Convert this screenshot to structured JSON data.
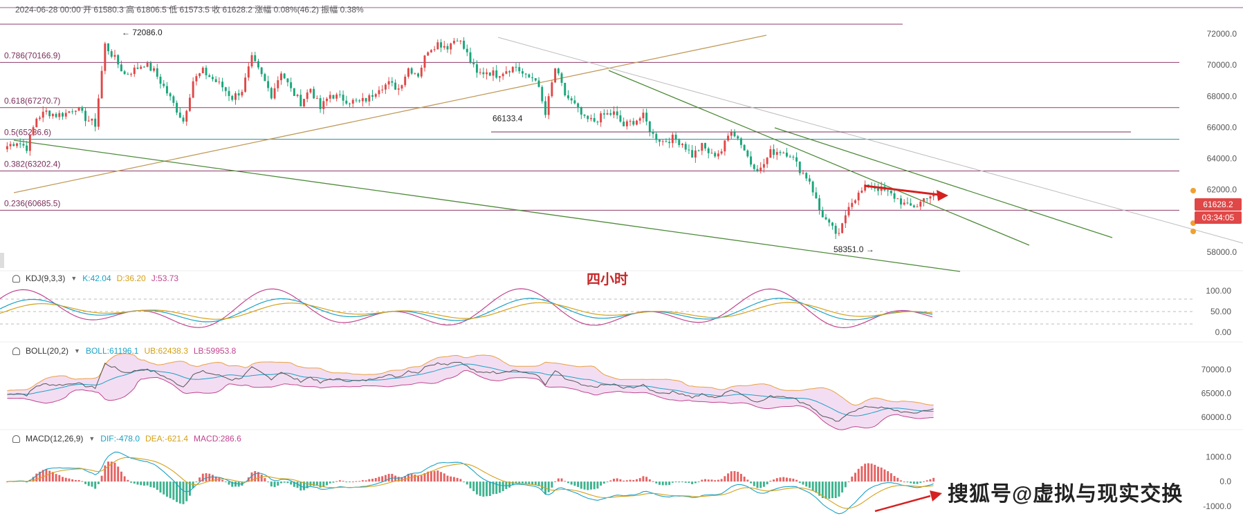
{
  "header": {
    "info_line": "2024-06-28 00:00  开 61580.3  高 61806.5  低 61573.5  收 61628.2  涨幅 0.08%(46.2)  振幅 0.38%"
  },
  "timeframe_label": "四小时",
  "watermark": "搜狐号@虚拟与现实交换",
  "price_tag": {
    "price": "61628.2",
    "countdown": "03:34:05"
  },
  "indicators": {
    "kdj": {
      "name": "KDJ(9,3,3)",
      "k": "K:42.04",
      "d": "D:36.20",
      "j": "J:53.73"
    },
    "boll": {
      "name": "BOLL(20,2)",
      "mid": "BOLL:61196.1",
      "ub": "UB:62438.3",
      "lb": "LB:59953.8"
    },
    "macd": {
      "name": "MACD(12,26,9)",
      "dif": "DIF:-478.0",
      "dea": "DEA:-621.4",
      "macd": "MACD:286.6"
    }
  },
  "colors": {
    "up": "#e04747",
    "down": "#1aa57a",
    "fib": "#8e3a6a",
    "accent": "#c62828"
  },
  "chart_data": {
    "type": "candlestick",
    "main": {
      "ylim": [
        56800,
        73200
      ],
      "yticks": [
        "72000.0",
        "70000.0",
        "68000.0",
        "66000.0",
        "64000.0",
        "62000.0",
        "60000.0",
        "58000.0"
      ],
      "ytick_values": [
        72000,
        70000,
        68000,
        66000,
        64000,
        62000,
        60000,
        58000
      ],
      "close_path": [
        64800,
        65100,
        64700,
        66600,
        67000,
        66800,
        66900,
        67300,
        66600,
        66200,
        71300,
        70400,
        69400,
        69700,
        70100,
        69600,
        68600,
        67500,
        66400,
        69000,
        69600,
        69100,
        68600,
        67900,
        68400,
        70400,
        69300,
        68100,
        69600,
        68400,
        67600,
        68500,
        67200,
        68100,
        67900,
        67700,
        67600,
        67900,
        68600,
        68800,
        68500,
        69800,
        69400,
        71000,
        71400,
        71200,
        71800,
        70700,
        69400,
        69600,
        69400,
        69700,
        69900,
        69200,
        69200,
        66800,
        69800,
        68100,
        67400,
        66500,
        66400,
        66800,
        66900,
        66100,
        66400,
        66700,
        65500,
        65100,
        65300,
        65000,
        64200,
        64800,
        64200,
        64500,
        65900,
        65000,
        63700,
        63300,
        64400,
        64500,
        64300,
        63300,
        62600,
        60700,
        59700,
        59000,
        61100,
        61700,
        62300,
        62100,
        61800,
        61400,
        60900,
        61000,
        61628
      ],
      "fib_levels": [
        {
          "label": "0.786(70166.9)",
          "value": 70166.9
        },
        {
          "label": "0.618(67270.7)",
          "value": 67270.7
        },
        {
          "label": "0.5(65236.6)",
          "value": 65236.6
        },
        {
          "label": "0.382(63202.4)",
          "value": 63202.4
        },
        {
          "label": "0.236(60685.5)",
          "value": 60685.5
        }
      ],
      "annotations": [
        {
          "label": "72086.0",
          "value": 72086.0
        },
        {
          "label": "66133.4",
          "value": 66133.4
        },
        {
          "label": "58351.0",
          "value": 58351.0
        }
      ]
    },
    "kdj": {
      "yticks": [
        "100.00",
        "50.00",
        "0.00"
      ],
      "ytick_values": [
        100,
        50,
        0
      ],
      "ylim": [
        -15,
        115
      ]
    },
    "boll": {
      "yticks": [
        "70000.0",
        "65000.0",
        "60000.0"
      ],
      "ytick_values": [
        70000,
        65000,
        60000
      ],
      "ylim": [
        58000,
        72500
      ]
    },
    "macd": {
      "yticks": [
        "1000.0",
        "0.0",
        "-1000.0"
      ],
      "ytick_values": [
        1000,
        0,
        -1000
      ],
      "ylim": [
        -1200,
        1600
      ]
    }
  }
}
